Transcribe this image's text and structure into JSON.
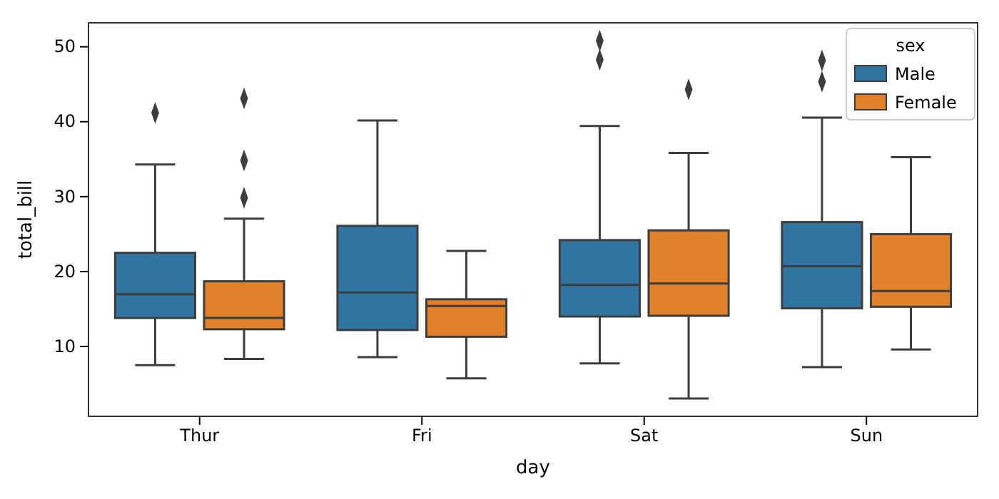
{
  "chart_data": {
    "type": "box",
    "xlabel": "day",
    "ylabel": "total_bill",
    "categories": [
      "Thur",
      "Fri",
      "Sat",
      "Sun"
    ],
    "ylim": [
      0.68,
      53.2
    ],
    "yticks": [
      10,
      20,
      30,
      40,
      50
    ],
    "legend": "top right",
    "legend_title": "sex",
    "grid": false,
    "marker": "diamond",
    "series": [
      {
        "name": "Male",
        "color": "#3274a1",
        "boxes": [
          {
            "low": 7.51,
            "q1": 13.8,
            "median": 16.98,
            "q3": 22.5,
            "high": 34.3,
            "outliers": [
              41.19
            ]
          },
          {
            "low": 8.58,
            "q1": 12.2,
            "median": 17.2,
            "q3": 26.1,
            "high": 40.17
          },
          {
            "low": 7.74,
            "q1": 14.0,
            "median": 18.2,
            "q3": 24.2,
            "high": 39.42,
            "outliers": [
              48.27,
              50.81
            ]
          },
          {
            "low": 7.25,
            "q1": 15.1,
            "median": 20.7,
            "q3": 26.6,
            "high": 40.55,
            "outliers": [
              45.35,
              48.17
            ]
          }
        ]
      },
      {
        "name": "Female",
        "color": "#e1812c",
        "boxes": [
          {
            "low": 8.35,
            "q1": 12.3,
            "median": 13.8,
            "q3": 18.7,
            "high": 27.05,
            "outliers": [
              29.85,
              34.83,
              43.11
            ]
          },
          {
            "low": 5.75,
            "q1": 11.3,
            "median": 15.4,
            "q3": 16.3,
            "high": 22.75
          },
          {
            "low": 3.07,
            "q1": 14.1,
            "median": 18.4,
            "q3": 25.5,
            "high": 35.83,
            "outliers": [
              44.3
            ]
          },
          {
            "low": 9.6,
            "q1": 15.3,
            "median": 17.4,
            "q3": 25.0,
            "high": 35.26
          }
        ]
      }
    ]
  }
}
